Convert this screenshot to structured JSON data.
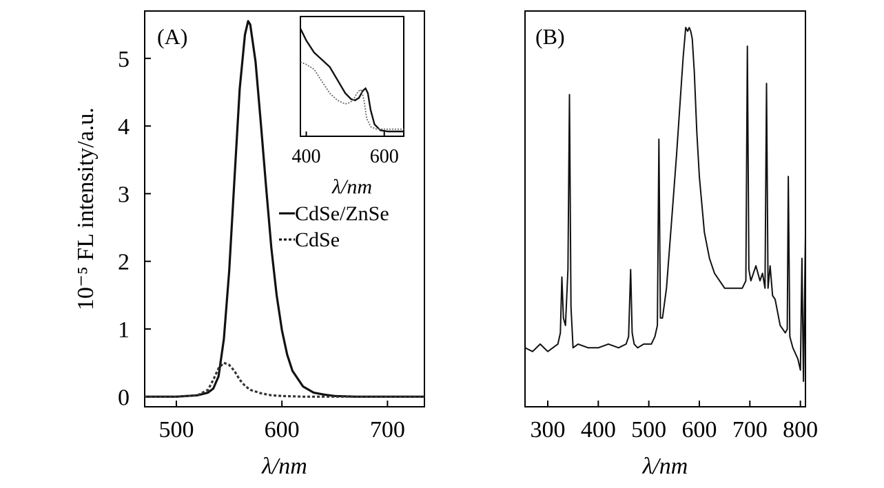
{
  "chart_data": [
    {
      "type": "line",
      "panel": "(A)",
      "xlabel": "λ/nm",
      "ylabel": "10⁻⁵ FL intensity/a.u.",
      "xlim": [
        470,
        735
      ],
      "ylim": [
        -0.15,
        5.7
      ],
      "xticks": [
        500,
        600,
        700
      ],
      "yticks": [
        0,
        1,
        2,
        3,
        4,
        5
      ],
      "legend_position": "right",
      "series": [
        {
          "name": "CdSe/ZnSe",
          "style": "solid",
          "color": "#111111",
          "x": [
            470,
            500,
            520,
            530,
            535,
            540,
            545,
            550,
            555,
            560,
            565,
            568,
            570,
            575,
            580,
            585,
            590,
            595,
            600,
            605,
            610,
            620,
            630,
            640,
            650,
            670,
            700,
            735
          ],
          "y": [
            0.0,
            0.0,
            0.02,
            0.06,
            0.12,
            0.3,
            0.85,
            1.85,
            3.2,
            4.55,
            5.35,
            5.55,
            5.5,
            4.95,
            4.05,
            3.1,
            2.2,
            1.5,
            0.98,
            0.62,
            0.38,
            0.15,
            0.06,
            0.03,
            0.01,
            0.0,
            0.0,
            0.0
          ]
        },
        {
          "name": "CdSe",
          "style": "dotted",
          "color": "#333333",
          "x": [
            470,
            500,
            520,
            530,
            535,
            540,
            545,
            550,
            555,
            560,
            565,
            570,
            580,
            590,
            600,
            620,
            650,
            700,
            735
          ],
          "y": [
            0.0,
            0.0,
            0.02,
            0.1,
            0.25,
            0.42,
            0.5,
            0.47,
            0.38,
            0.25,
            0.16,
            0.1,
            0.05,
            0.02,
            0.01,
            0.0,
            0.0,
            0.0,
            0.0
          ]
        }
      ],
      "inset": {
        "type": "line",
        "xlabel": "λ/nm",
        "xlim": [
          385,
          650
        ],
        "ylim": [
          0,
          1
        ],
        "xticks": [
          400,
          600
        ],
        "series": [
          {
            "name": "CdSe/ZnSe",
            "style": "solid",
            "x": [
              385,
              400,
              420,
              440,
              460,
              480,
              500,
              515,
              525,
              535,
              545,
              552,
              558,
              565,
              575,
              590,
              610,
              630,
              650
            ],
            "y": [
              0.9,
              0.8,
              0.7,
              0.64,
              0.58,
              0.47,
              0.36,
              0.31,
              0.3,
              0.32,
              0.38,
              0.4,
              0.36,
              0.22,
              0.1,
              0.05,
              0.04,
              0.04,
              0.04
            ]
          },
          {
            "name": "CdSe",
            "style": "dotted",
            "x": [
              385,
              400,
              420,
              440,
              460,
              480,
              500,
              510,
              520,
              530,
              538,
              542,
              548,
              555,
              565,
              580,
              600,
              630,
              650
            ],
            "y": [
              0.62,
              0.6,
              0.56,
              0.46,
              0.36,
              0.3,
              0.27,
              0.28,
              0.3,
              0.36,
              0.39,
              0.38,
              0.3,
              0.15,
              0.08,
              0.06,
              0.06,
              0.06,
              0.06
            ]
          }
        ]
      }
    },
    {
      "type": "line",
      "panel": "(B)",
      "xlabel": "λ/nm",
      "ylabel": "",
      "xlim": [
        255,
        810
      ],
      "ylim": [
        0,
        1
      ],
      "xticks": [
        300,
        400,
        500,
        600,
        700,
        800
      ],
      "yticks": [],
      "series": [
        {
          "style": "solid",
          "color": "#111111",
          "x": [
            255,
            270,
            285,
            300,
            310,
            320,
            325,
            328,
            331,
            335,
            340,
            343,
            346,
            350,
            360,
            380,
            400,
            420,
            440,
            455,
            460,
            464,
            467,
            471,
            478,
            490,
            505,
            512,
            517,
            520,
            523,
            527,
            535,
            545,
            555,
            562,
            568,
            573,
            577,
            580,
            583,
            586,
            590,
            595,
            600,
            610,
            620,
            630,
            650,
            670,
            685,
            692,
            695,
            698,
            702,
            712,
            720,
            725,
            730,
            733,
            736,
            740,
            745,
            750,
            760,
            770,
            774,
            776,
            779,
            785,
            795,
            800,
            803,
            806,
            810
          ],
          "y": [
            0.14,
            0.13,
            0.15,
            0.13,
            0.14,
            0.15,
            0.18,
            0.33,
            0.22,
            0.2,
            0.35,
            0.82,
            0.25,
            0.14,
            0.15,
            0.14,
            0.14,
            0.15,
            0.14,
            0.15,
            0.17,
            0.35,
            0.18,
            0.15,
            0.14,
            0.15,
            0.15,
            0.17,
            0.2,
            0.7,
            0.22,
            0.22,
            0.3,
            0.48,
            0.66,
            0.8,
            0.92,
            1.0,
            0.99,
            1.0,
            0.99,
            0.97,
            0.88,
            0.72,
            0.6,
            0.45,
            0.38,
            0.34,
            0.3,
            0.3,
            0.3,
            0.32,
            0.95,
            0.35,
            0.32,
            0.36,
            0.32,
            0.34,
            0.3,
            0.85,
            0.3,
            0.36,
            0.28,
            0.27,
            0.2,
            0.18,
            0.19,
            0.6,
            0.17,
            0.14,
            0.11,
            0.08,
            0.38,
            0.05,
            0.45
          ]
        }
      ]
    }
  ]
}
